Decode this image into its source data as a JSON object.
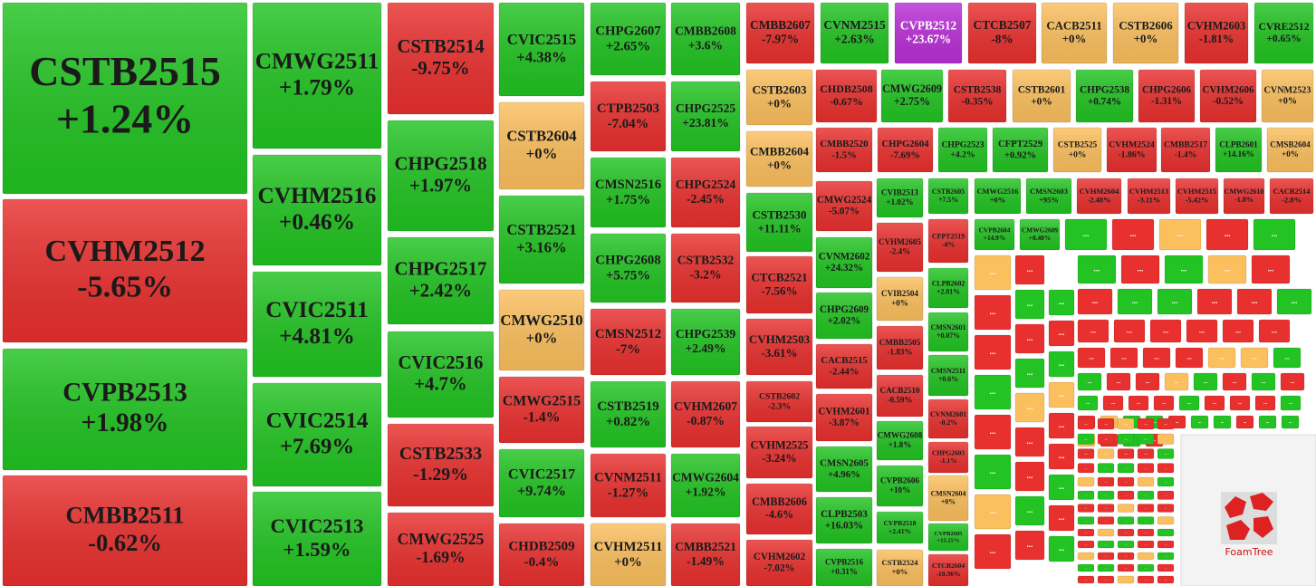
{
  "tiles": [
    {
      "name": "CSTB2515",
      "change": "+1.24%",
      "color": "#22c322"
    },
    {
      "name": "CVHM2512",
      "change": "-5.65%",
      "color": "#e8302e"
    },
    {
      "name": "CVPB2513",
      "change": "+1.98%",
      "color": "#22c322"
    },
    {
      "name": "CMBB2511",
      "change": "-0.62%",
      "color": "#e8302e"
    },
    {
      "name": "CMWG2511",
      "change": "+1.79%",
      "color": "#22c322"
    },
    {
      "name": "CVHM2516",
      "change": "+0.46%",
      "color": "#22c322"
    },
    {
      "name": "CVIC2511",
      "change": "+4.81%",
      "color": "#22c322"
    },
    {
      "name": "CVIC2514",
      "change": "+7.69%",
      "color": "#22c322"
    },
    {
      "name": "CVIC2513",
      "change": "+1.59%",
      "color": "#22c322"
    },
    {
      "name": "CSTB2514",
      "change": "-9.75%",
      "color": "#e8302e"
    },
    {
      "name": "CHPG2518",
      "change": "+1.97%",
      "color": "#22c322"
    },
    {
      "name": "CHPG2517",
      "change": "+2.42%",
      "color": "#22c322"
    },
    {
      "name": "CVIC2516",
      "change": "+4.7%",
      "color": "#22c322"
    },
    {
      "name": "CSTB2533",
      "change": "-1.29%",
      "color": "#e8302e"
    },
    {
      "name": "CMWG2525",
      "change": "-1.69%",
      "color": "#e8302e"
    },
    {
      "name": "CVIC2515",
      "change": "+4.38%",
      "color": "#22c322"
    },
    {
      "name": "CSTB2604",
      "change": "+0%",
      "color": "#fbbf5e"
    },
    {
      "name": "CSTB2521",
      "change": "+3.16%",
      "color": "#22c322"
    },
    {
      "name": "CMWG2510",
      "change": "+0%",
      "color": "#fbbf5e"
    },
    {
      "name": "CMWG2515",
      "change": "-1.4%",
      "color": "#e8302e"
    },
    {
      "name": "CVIC2517",
      "change": "+9.74%",
      "color": "#22c322"
    },
    {
      "name": "CHDB2509",
      "change": "-0.4%",
      "color": "#e8302e"
    },
    {
      "name": "CHPG2607",
      "change": "+2.65%",
      "color": "#22c322"
    },
    {
      "name": "CTPB2503",
      "change": "-7.04%",
      "color": "#e8302e"
    },
    {
      "name": "CMSN2516",
      "change": "+1.75%",
      "color": "#22c322"
    },
    {
      "name": "CHPG2608",
      "change": "+5.75%",
      "color": "#22c322"
    },
    {
      "name": "CMSN2512",
      "change": "-7%",
      "color": "#e8302e"
    },
    {
      "name": "CSTB2519",
      "change": "+0.82%",
      "color": "#22c322"
    },
    {
      "name": "CVNM2511",
      "change": "-1.27%",
      "color": "#e8302e"
    },
    {
      "name": "CVHM2511",
      "change": "+0%",
      "color": "#fbbf5e"
    },
    {
      "name": "CMBB2608",
      "change": "+3.6%",
      "color": "#22c322"
    },
    {
      "name": "CHPG2525",
      "change": "+23.81%",
      "color": "#22c322"
    },
    {
      "name": "CHPG2524",
      "change": "-2.45%",
      "color": "#e8302e"
    },
    {
      "name": "CSTB2532",
      "change": "-3.2%",
      "color": "#e8302e"
    },
    {
      "name": "CHPG2539",
      "change": "+2.49%",
      "color": "#22c322"
    },
    {
      "name": "CVHM2607",
      "change": "-0.87%",
      "color": "#e8302e"
    },
    {
      "name": "CMWG2604",
      "change": "+1.92%",
      "color": "#22c322"
    },
    {
      "name": "CMBB2521",
      "change": "-1.49%",
      "color": "#e8302e"
    },
    {
      "name": "CMBB2607",
      "change": "-7.97%",
      "color": "#e8302e"
    },
    {
      "name": "CVNM2515",
      "change": "+2.63%",
      "color": "#22c322"
    },
    {
      "name": "CVPB2512",
      "change": "+23.67%",
      "color": "#b92fd6"
    },
    {
      "name": "CTCB2507",
      "change": "-8%",
      "color": "#e8302e"
    },
    {
      "name": "CACB2511",
      "change": "+0%",
      "color": "#fbbf5e"
    },
    {
      "name": "CSTB2606",
      "change": "+0%",
      "color": "#fbbf5e"
    },
    {
      "name": "CVHM2603",
      "change": "-1.81%",
      "color": "#e8302e"
    },
    {
      "name": "CVRE2512",
      "change": "+0.65%",
      "color": "#22c322"
    },
    {
      "name": "CSTB2603",
      "change": "+0%",
      "color": "#fbbf5e"
    },
    {
      "name": "CMBB2604",
      "change": "+0%",
      "color": "#fbbf5e"
    },
    {
      "name": "CSTB2530",
      "change": "+11.11%",
      "color": "#22c322"
    },
    {
      "name": "CTCB2521",
      "change": "-7.56%",
      "color": "#e8302e"
    },
    {
      "name": "CVHM2503",
      "change": "-3.61%",
      "color": "#e8302e"
    },
    {
      "name": "CSTB2602",
      "change": "-2.3%",
      "color": "#e8302e"
    },
    {
      "name": "CVHM2525",
      "change": "-3.24%",
      "color": "#e8302e"
    },
    {
      "name": "CMBB2606",
      "change": "-4.6%",
      "color": "#e8302e"
    },
    {
      "name": "CVHM2602",
      "change": "-7.02%",
      "color": "#e8302e"
    },
    {
      "name": "CHDB2508",
      "change": "-0.67%",
      "color": "#e8302e"
    },
    {
      "name": "CMWG2609",
      "change": "+2.75%",
      "color": "#22c322"
    },
    {
      "name": "CSTB2538",
      "change": "-0.35%",
      "color": "#e8302e"
    },
    {
      "name": "CSTB2601",
      "change": "+0%",
      "color": "#fbbf5e"
    },
    {
      "name": "CHPG2538",
      "change": "+0.74%",
      "color": "#22c322"
    },
    {
      "name": "CHPG2606",
      "change": "-1.31%",
      "color": "#e8302e"
    },
    {
      "name": "CVHM2606",
      "change": "-0.52%",
      "color": "#e8302e"
    },
    {
      "name": "CVNM2523",
      "change": "+0%",
      "color": "#fbbf5e"
    },
    {
      "name": "CMBB2520",
      "change": "-1.5%",
      "color": "#e8302e"
    },
    {
      "name": "CHPG2604",
      "change": "-7.69%",
      "color": "#e8302e"
    },
    {
      "name": "CHPG2523",
      "change": "+4.2%",
      "color": "#22c322"
    },
    {
      "name": "CFPT2529",
      "change": "+0.92%",
      "color": "#22c322"
    },
    {
      "name": "CSTB2525",
      "change": "+0%",
      "color": "#fbbf5e"
    },
    {
      "name": "CVHM2524",
      "change": "-1.86%",
      "color": "#e8302e"
    },
    {
      "name": "CMBB2517",
      "change": "-1.4%",
      "color": "#e8302e"
    },
    {
      "name": "CLPB2601",
      "change": "+14.16%",
      "color": "#22c322"
    },
    {
      "name": "CMSB2604",
      "change": "+0%",
      "color": "#fbbf5e"
    },
    {
      "name": "CMWG2524",
      "change": "-5.07%",
      "color": "#e8302e"
    },
    {
      "name": "CVNM2602",
      "change": "+24.32%",
      "color": "#22c322"
    },
    {
      "name": "CHPG2609",
      "change": "+2.02%",
      "color": "#22c322"
    },
    {
      "name": "CACB2515",
      "change": "-2.44%",
      "color": "#e8302e"
    },
    {
      "name": "CVHM2601",
      "change": "-3.87%",
      "color": "#e8302e"
    },
    {
      "name": "CMSN2605",
      "change": "+4.96%",
      "color": "#22c322"
    },
    {
      "name": "CLPB2503",
      "change": "+16.03%",
      "color": "#22c322"
    },
    {
      "name": "CVPB2516",
      "change": "+0.31%",
      "color": "#22c322"
    },
    {
      "name": "CVIB2513",
      "change": "+1.02%",
      "color": "#22c322"
    },
    {
      "name": "CVHM2605",
      "change": "-2.4%",
      "color": "#e8302e"
    },
    {
      "name": "CVIB2504",
      "change": "+0%",
      "color": "#fbbf5e"
    },
    {
      "name": "CMBB2505",
      "change": "-1.83%",
      "color": "#e8302e"
    },
    {
      "name": "CACB2510",
      "change": "-0.59%",
      "color": "#e8302e"
    },
    {
      "name": "CMWG2608",
      "change": "+1.8%",
      "color": "#22c322"
    },
    {
      "name": "CVPB2606",
      "change": "+10%",
      "color": "#22c322"
    },
    {
      "name": "CVPB2518",
      "change": "+2.41%",
      "color": "#22c322"
    },
    {
      "name": "CSTB2524",
      "change": "+0%",
      "color": "#fbbf5e"
    },
    {
      "name": "CSTB2605",
      "change": "+7.5%",
      "color": "#22c322"
    },
    {
      "name": "CFPT2519",
      "change": "-4%",
      "color": "#e8302e"
    },
    {
      "name": "CLPB2602",
      "change": "+2.01%",
      "color": "#22c322"
    },
    {
      "name": "CMSN2601",
      "change": "+0.07%",
      "color": "#22c322"
    },
    {
      "name": "CMSN2511",
      "change": "+0.6%",
      "color": "#22c322"
    },
    {
      "name": "CVNM2601",
      "change": "-0.2%",
      "color": "#e8302e"
    },
    {
      "name": "CHPG2603",
      "change": "-1.1%",
      "color": "#e8302e"
    },
    {
      "name": "CMSN2604",
      "change": "+0%",
      "color": "#fbbf5e"
    },
    {
      "name": "CVPB2605",
      "change": "+15.25%",
      "color": "#22c322"
    },
    {
      "name": "CTCB2604",
      "change": "-10.36%",
      "color": "#e8302e"
    },
    {
      "name": "CMWG2516",
      "change": "+0%",
      "color": "#22c322"
    },
    {
      "name": "CMSN2603",
      "change": "+95%",
      "color": "#22c322"
    },
    {
      "name": "CVHM2604",
      "change": "-2.48%",
      "color": "#e8302e"
    },
    {
      "name": "CVHM2513",
      "change": "-3.11%",
      "color": "#e8302e"
    },
    {
      "name": "CVHM2515",
      "change": "-5.42%",
      "color": "#e8302e"
    },
    {
      "name": "CMWG2610",
      "change": "-1.8%",
      "color": "#e8302e"
    },
    {
      "name": "CACB2514",
      "change": "-2.8%",
      "color": "#e8302e"
    },
    {
      "name": "CVPB2604",
      "change": "+14.9%",
      "color": "#22c322"
    },
    {
      "name": "CMWG2609",
      "change": "+0.48%",
      "color": "#22c322"
    }
  ],
  "ellipsis": "...",
  "logo": "FoamTree"
}
